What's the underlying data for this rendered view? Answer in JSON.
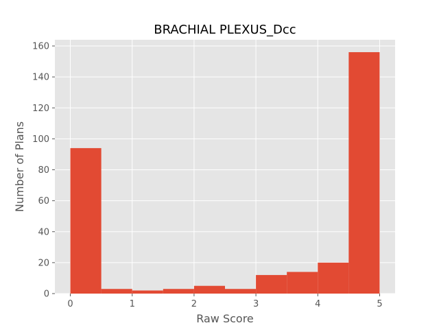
{
  "chart_data": {
    "type": "bar",
    "title": "BRACHIAL PLEXUS_Dcc",
    "xlabel": "Raw Score",
    "ylabel": "Number of Plans",
    "bin_edges": [
      0,
      0.5,
      1.0,
      1.5,
      2.0,
      2.5,
      3.0,
      3.5,
      4.0,
      4.5,
      5.0
    ],
    "values": [
      94,
      3,
      2,
      3,
      5,
      3,
      12,
      14,
      20,
      156
    ],
    "xlim": [
      -0.25,
      5.25
    ],
    "ylim": [
      0,
      164
    ],
    "xticks": [
      0,
      1,
      2,
      3,
      4,
      5
    ],
    "yticks": [
      0,
      20,
      40,
      60,
      80,
      100,
      120,
      140,
      160
    ],
    "grid": true,
    "colors": {
      "bar": "#E24A33",
      "plot_background": "#E5E5E5",
      "grid": "#FFFFFF",
      "text": "#555555"
    }
  }
}
